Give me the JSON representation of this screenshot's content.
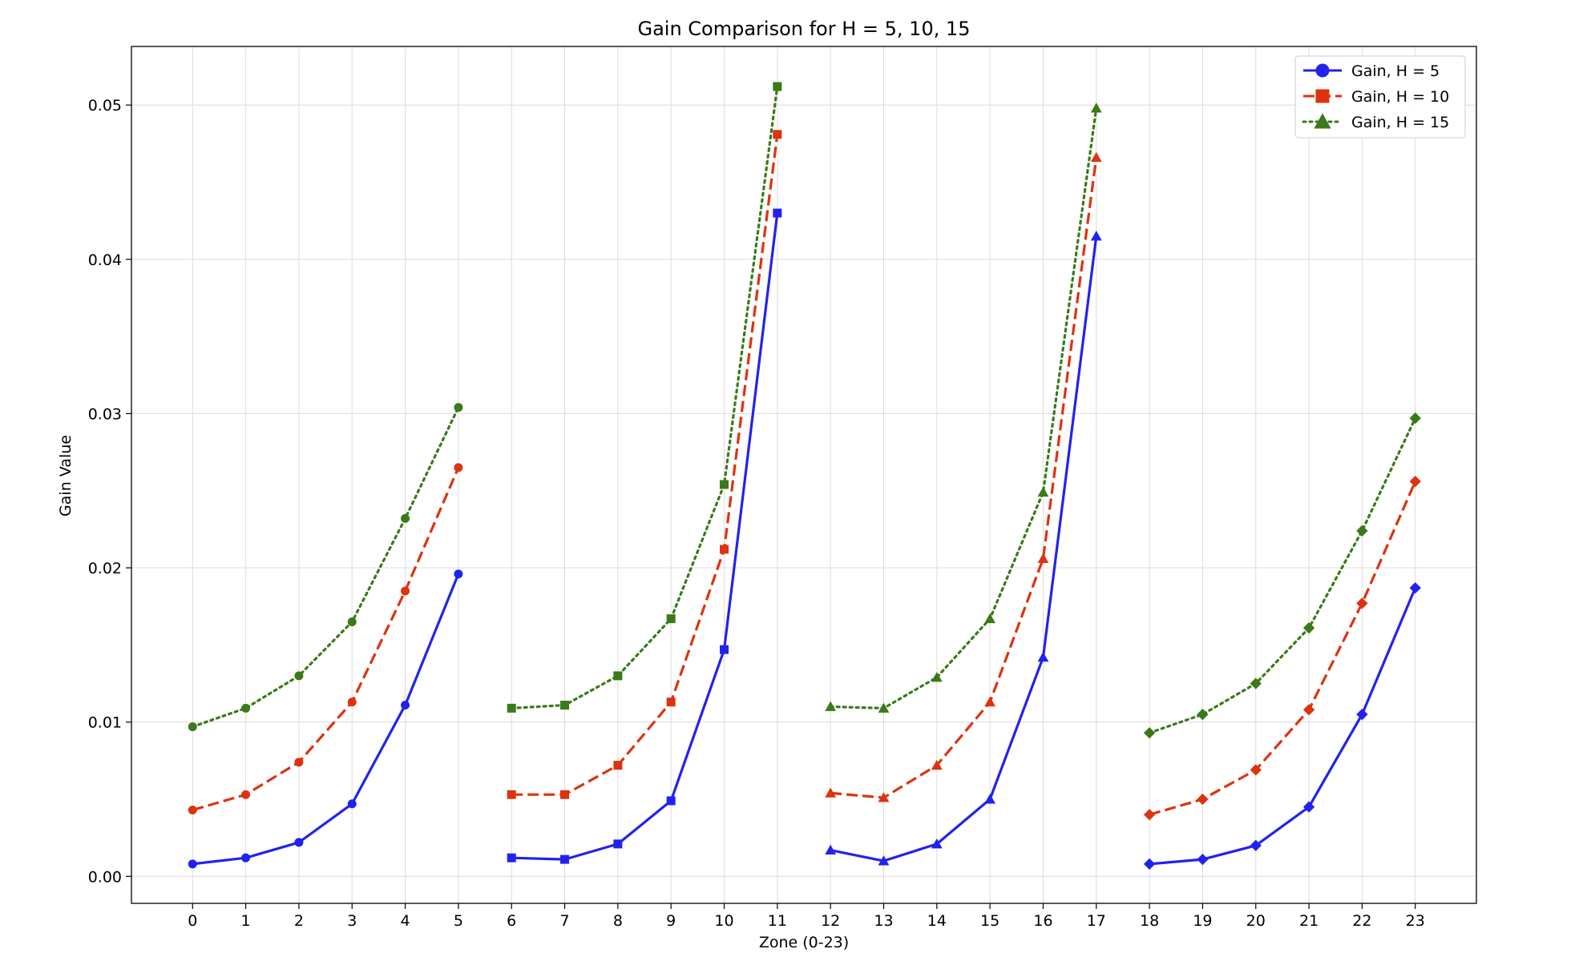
{
  "chart_data": {
    "type": "line",
    "title": "Gain Comparison for H = 5, 10, 15",
    "xlabel": "Zone (0-23)",
    "ylabel": "Gain Value",
    "x": [
      0,
      1,
      2,
      3,
      4,
      5,
      6,
      7,
      8,
      9,
      10,
      11,
      12,
      13,
      14,
      15,
      16,
      17,
      18,
      19,
      20,
      21,
      22,
      23
    ],
    "xticks": [
      "0",
      "1",
      "2",
      "3",
      "4",
      "5",
      "6",
      "7",
      "8",
      "9",
      "10",
      "11",
      "12",
      "13",
      "14",
      "15",
      "16",
      "17",
      "18",
      "19",
      "20",
      "21",
      "22",
      "23"
    ],
    "yticks": [
      0.0,
      0.01,
      0.02,
      0.03,
      0.04,
      0.05
    ],
    "ytick_labels": [
      "0.00",
      "0.01",
      "0.02",
      "0.03",
      "0.04",
      "0.05"
    ],
    "xlim": [
      -1.15,
      24.15
    ],
    "ylim": [
      -0.00175,
      0.0538
    ],
    "grid": true,
    "legend_position": "top-right",
    "segments": [
      [
        0,
        5
      ],
      [
        6,
        11
      ],
      [
        12,
        17
      ],
      [
        18,
        23
      ]
    ],
    "segment_markers": [
      "circle",
      "square",
      "triangle",
      "diamond"
    ],
    "series": [
      {
        "name": "Gain, H = 5",
        "color": "#2222ee",
        "line_style": "solid",
        "legend_marker": "circle",
        "values": [
          0.0008,
          0.0012,
          0.0022,
          0.0047,
          0.0111,
          0.0196,
          0.0012,
          0.0011,
          0.0021,
          0.0049,
          0.0147,
          0.043,
          0.0017,
          0.001,
          0.0021,
          0.005,
          0.0142,
          0.0415,
          0.0008,
          0.0011,
          0.002,
          0.0045,
          0.0105,
          0.0187
        ]
      },
      {
        "name": "Gain, H = 10",
        "color": "#dd3311",
        "line_style": "dashed",
        "legend_marker": "square",
        "values": [
          0.0043,
          0.0053,
          0.0074,
          0.0113,
          0.0185,
          0.0265,
          0.0053,
          0.0053,
          0.0072,
          0.0113,
          0.0212,
          0.0481,
          0.0054,
          0.0051,
          0.0072,
          0.0113,
          0.0206,
          0.0466,
          0.004,
          0.005,
          0.0069,
          0.0108,
          0.0177,
          0.0256
        ]
      },
      {
        "name": "Gain, H = 15",
        "color": "#3a7a18",
        "line_style": "dotted",
        "legend_marker": "triangle",
        "values": [
          0.0097,
          0.0109,
          0.013,
          0.0165,
          0.0232,
          0.0304,
          0.0109,
          0.0111,
          0.013,
          0.0167,
          0.0254,
          0.0512,
          0.011,
          0.0109,
          0.0129,
          0.0167,
          0.0249,
          0.0498,
          0.0093,
          0.0105,
          0.0125,
          0.0161,
          0.0224,
          0.0297
        ]
      }
    ]
  }
}
